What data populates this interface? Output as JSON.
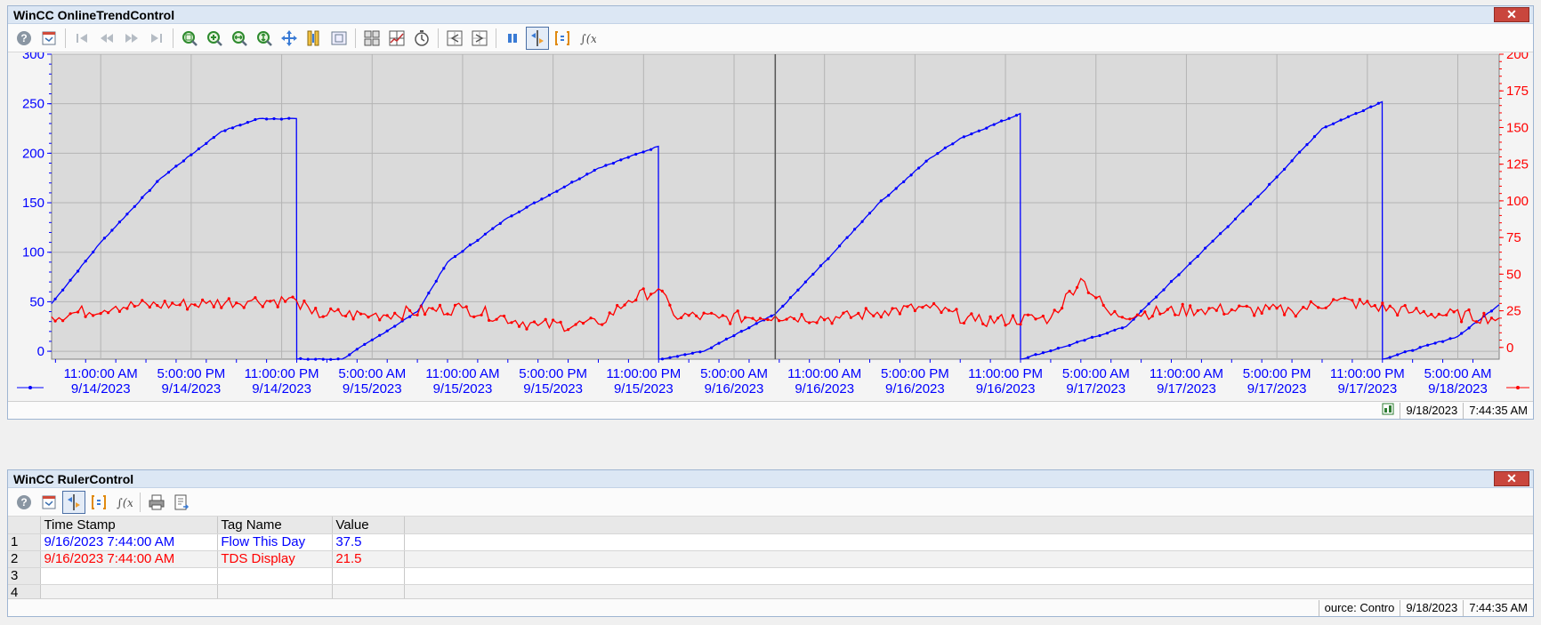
{
  "trend_window": {
    "title": "WinCC OnlineTrendControl",
    "close_label": "✕",
    "status": {
      "date": "9/18/2023",
      "time": "7:44:35 AM"
    }
  },
  "ruler_window": {
    "title": "WinCC RulerControl",
    "close_label": "✕",
    "status": {
      "source": "ource: Contro",
      "date": "9/18/2023",
      "time": "7:44:35 AM"
    },
    "columns": [
      "Time Stamp",
      "Tag Name",
      "Value"
    ],
    "rows": [
      {
        "num": "1",
        "time": "9/16/2023 7:44:00 AM",
        "tag": "Flow This Day",
        "value": "37.5",
        "color": "#0000ff"
      },
      {
        "num": "2",
        "time": "9/16/2023 7:44:00 AM",
        "tag": "TDS Display",
        "value": "21.5",
        "color": "#ff0000"
      },
      {
        "num": "3",
        "time": "",
        "tag": "",
        "value": "",
        "color": "#000000"
      },
      {
        "num": "4",
        "time": "",
        "tag": "",
        "value": "",
        "color": "#000000"
      }
    ]
  },
  "chart_data": {
    "type": "line",
    "title": "",
    "xlabel": "",
    "x_ticks": [
      [
        "11:00:00 AM",
        "9/14/2023"
      ],
      [
        "5:00:00 PM",
        "9/14/2023"
      ],
      [
        "11:00:00 PM",
        "9/14/2023"
      ],
      [
        "5:00:00 AM",
        "9/15/2023"
      ],
      [
        "11:00:00 AM",
        "9/15/2023"
      ],
      [
        "5:00:00 PM",
        "9/15/2023"
      ],
      [
        "11:00:00 PM",
        "9/15/2023"
      ],
      [
        "5:00:00 AM",
        "9/16/2023"
      ],
      [
        "11:00:00 AM",
        "9/16/2023"
      ],
      [
        "5:00:00 PM",
        "9/16/2023"
      ],
      [
        "11:00:00 PM",
        "9/16/2023"
      ],
      [
        "5:00:00 AM",
        "9/17/2023"
      ],
      [
        "11:00:00 AM",
        "9/17/2023"
      ],
      [
        "5:00:00 PM",
        "9/17/2023"
      ],
      [
        "11:00:00 PM",
        "9/17/2023"
      ],
      [
        "5:00:00 AM",
        "9/18/2023"
      ]
    ],
    "x_range": [
      "9/14/2023 7:44:35 AM",
      "9/18/2023 7:44:35 AM"
    ],
    "ruler_at": "9/16/2023 7:44:00 AM",
    "left_axis": {
      "ticks": [
        "300",
        "250",
        "200",
        "150",
        "100",
        "50",
        "0"
      ],
      "range": [
        -8,
        300
      ],
      "color": "#0000ff"
    },
    "right_axis": {
      "ticks": [
        "200",
        "175",
        "150",
        "125",
        "100",
        "75",
        "50",
        "25",
        "0"
      ],
      "range": [
        -8,
        200
      ],
      "color": "#ff0000"
    },
    "grid": true,
    "series": [
      {
        "name": "Flow This Day",
        "axis": "left",
        "color": "#0000ff",
        "points": [
          [
            "9/14/2023 7:44 AM",
            48
          ],
          [
            "9/14/2023 11:00 AM",
            110
          ],
          [
            "9/14/2023 3:00 PM",
            175
          ],
          [
            "9/14/2023 7:00 PM",
            222
          ],
          [
            "9/14/2023 9:30 PM",
            235
          ],
          [
            "9/14/2023 11:59 PM",
            235
          ],
          [
            "9/15/2023 12:00 AM",
            -8
          ],
          [
            "9/15/2023 3:00 AM",
            -8
          ],
          [
            "9/15/2023 8:00 AM",
            40
          ],
          [
            "9/15/2023 10:00 AM",
            90
          ],
          [
            "9/15/2023 2:00 PM",
            135
          ],
          [
            "9/15/2023 8:00 PM",
            185
          ],
          [
            "9/15/2023 11:59 PM",
            207
          ],
          [
            "9/16/2023 12:00 AM",
            -8
          ],
          [
            "9/16/2023 3:00 AM",
            0
          ],
          [
            "9/16/2023 7:44 AM",
            37.5
          ],
          [
            "9/16/2023 11:30 AM",
            98
          ],
          [
            "9/16/2023 2:30 PM",
            148
          ],
          [
            "9/16/2023 6:00 PM",
            195
          ],
          [
            "9/16/2023 8:00 PM",
            215
          ],
          [
            "9/16/2023 11:59 PM",
            240
          ],
          [
            "9/17/2023 12:00 AM",
            -8
          ],
          [
            "9/17/2023 3:00 AM",
            5
          ],
          [
            "9/17/2023 7:00 AM",
            25
          ],
          [
            "9/17/2023 11:00 AM",
            85
          ],
          [
            "9/17/2023 4:00 PM",
            160
          ],
          [
            "9/17/2023 8:00 PM",
            225
          ],
          [
            "9/17/2023 11:59 PM",
            252
          ],
          [
            "9/18/2023 12:00 AM",
            -8
          ],
          [
            "9/18/2023 5:00 AM",
            15
          ],
          [
            "9/18/2023 7:44 AM",
            47
          ]
        ]
      },
      {
        "name": "TDS Display",
        "axis": "right",
        "color": "#ff0000",
        "points": [
          [
            "9/14/2023 7:44 AM",
            21
          ],
          [
            "9/14/2023 12:00 PM",
            28
          ],
          [
            "9/14/2023 6:00 PM",
            30
          ],
          [
            "9/14/2023 9:00 PM",
            32
          ],
          [
            "9/14/2023 11:59 PM",
            32
          ],
          [
            "9/15/2023 1:00 AM",
            23
          ],
          [
            "9/15/2023 5:00 AM",
            22
          ],
          [
            "9/15/2023 11:00 AM",
            27
          ],
          [
            "9/15/2023 4:00 PM",
            15
          ],
          [
            "9/15/2023 8:00 PM",
            16
          ],
          [
            "9/15/2023 10:00 PM",
            32
          ],
          [
            "9/15/2023 11:59 PM",
            40
          ],
          [
            "9/16/2023 1:00 AM",
            22
          ],
          [
            "9/16/2023 4:00 AM",
            20
          ],
          [
            "9/16/2023 7:44 AM",
            21.5
          ],
          [
            "9/16/2023 12:00 PM",
            20
          ],
          [
            "9/16/2023 3:00 PM",
            25
          ],
          [
            "9/16/2023 6:00 PM",
            27
          ],
          [
            "9/16/2023 9:00 PM",
            18
          ],
          [
            "9/17/2023 2:00 AM",
            20
          ],
          [
            "9/17/2023 4:00 AM",
            47
          ],
          [
            "9/17/2023 6:00 AM",
            22
          ],
          [
            "9/17/2023 12:00 PM",
            26
          ],
          [
            "9/17/2023 6:00 PM",
            25
          ],
          [
            "9/17/2023 9:00 PM",
            32
          ],
          [
            "9/18/2023 2:00 AM",
            24
          ],
          [
            "9/18/2023 7:44 AM",
            20
          ]
        ]
      }
    ]
  }
}
